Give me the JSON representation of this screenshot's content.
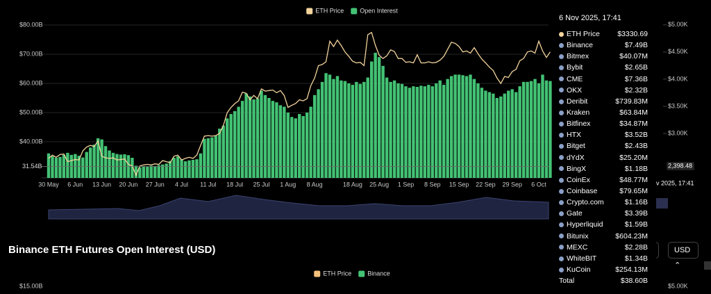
{
  "chart_data": [
    {
      "type": "bar",
      "categories": [
        "30 May",
        null,
        null,
        null,
        null,
        null,
        null,
        "6 Jun",
        null,
        null,
        null,
        null,
        null,
        null,
        "13 Jun",
        null,
        null,
        null,
        null,
        null,
        null,
        "20 Jun",
        null,
        null,
        null,
        null,
        null,
        null,
        "27 Jun",
        null,
        null,
        null,
        null,
        null,
        null,
        "4 Jul",
        null,
        null,
        null,
        null,
        null,
        null,
        "11 Jul",
        null,
        null,
        null,
        null,
        null,
        null,
        "18 Jul",
        null,
        null,
        null,
        null,
        null,
        null,
        "25 Jul",
        null,
        null,
        null,
        null,
        null,
        null,
        "1 Aug",
        null,
        null,
        null,
        null,
        null,
        null,
        "8 Aug",
        null,
        null,
        null,
        null,
        null,
        null,
        null,
        null,
        null,
        "18 Aug",
        null,
        null,
        null,
        null,
        null,
        null,
        "25 Aug",
        null,
        null,
        null,
        null,
        null,
        null,
        "1 Sep",
        null,
        null,
        null,
        null,
        null,
        null,
        "8 Sep",
        null,
        null,
        null,
        null,
        null,
        null,
        "15 Sep",
        null,
        null,
        null,
        null,
        null,
        null,
        "22 Sep",
        null,
        null,
        null,
        null,
        null,
        null,
        "29 Sep",
        null,
        null,
        null,
        null,
        null,
        null,
        "6 Oct",
        null,
        null,
        null
      ],
      "series": [
        {
          "name": "ETH Price",
          "color": "#f3d49c",
          "type": "line",
          "axis": "y2",
          "values": [
            2540,
            2600,
            2560,
            2610,
            2620,
            2480,
            2500,
            2520,
            2510,
            2680,
            2750,
            2780,
            2760,
            2860,
            2580,
            2550,
            2540,
            2550,
            2510,
            2520,
            2530,
            2430,
            2400,
            2230,
            2400,
            2420,
            2430,
            2420,
            2440,
            2430,
            2500,
            2480,
            2460,
            2580,
            2600,
            2510,
            2540,
            2560,
            2540,
            2600,
            2780,
            2950,
            2960,
            2950,
            2960,
            3000,
            3150,
            3380,
            3480,
            3550,
            3600,
            3760,
            3740,
            3620,
            3700,
            3640,
            3820,
            3780,
            3790,
            3800,
            3750,
            3790,
            3700,
            3480,
            3520,
            3550,
            3620,
            3600,
            3640,
            3880,
            4020,
            4250,
            4270,
            4320,
            4700,
            4600,
            4720,
            4620,
            4500,
            4420,
            4330,
            4300,
            4310,
            4250,
            4820,
            4860,
            4620,
            4440,
            4380,
            4430,
            4540,
            4510,
            4380,
            4380,
            4310,
            4320,
            4300,
            4450,
            4300,
            4300,
            4320,
            4300,
            4310,
            4350,
            4420,
            4550,
            4680,
            4660,
            4600,
            4500,
            4520,
            4480,
            4580,
            4470,
            4370,
            4300,
            4220,
            4160,
            4020,
            3920,
            4050,
            4030,
            4140,
            4180,
            4340,
            4380,
            4500,
            4520,
            4480,
            4700,
            4520,
            4400,
            4500
          ]
        },
        {
          "name": "Open Interest",
          "color": "#43c274",
          "values": [
            36.0,
            35.0,
            34.5,
            34.8,
            35.5,
            36.2,
            35.5,
            35.8,
            35.2,
            34.6,
            36.5,
            38.0,
            39.0,
            41.2,
            40.8,
            38.5,
            37.0,
            36.2,
            35.8,
            35.6,
            35.7,
            35.4,
            34.5,
            31.8,
            31.2,
            31.5,
            31.4,
            31.8,
            31.6,
            32.0,
            32.2,
            32.5,
            33.4,
            34.5,
            35.0,
            34.0,
            33.3,
            33.6,
            33.8,
            34.0,
            36.0,
            41.0,
            41.2,
            41.5,
            42.0,
            44.5,
            45.5,
            48.0,
            49.5,
            50.5,
            52.0,
            54.0,
            56.5,
            55.5,
            54.5,
            54.8,
            57.5,
            56.0,
            55.0,
            54.0,
            53.5,
            52.5,
            52.0,
            50.0,
            48.5,
            48.0,
            49.5,
            48.8,
            50.0,
            52.0,
            56.0,
            58.0,
            60.5,
            63.5,
            63.0,
            61.5,
            62.5,
            61.0,
            60.8,
            60.0,
            59.5,
            60.5,
            59.8,
            60.5,
            62.0,
            67.5,
            70.5,
            69.0,
            66.0,
            62.0,
            60.5,
            61.0,
            60.0,
            59.8,
            59.0,
            58.5,
            59.0,
            58.8,
            59.2,
            59.0,
            59.5,
            59.0,
            60.0,
            61.0,
            59.5,
            61.5,
            62.5,
            63.0,
            63.0,
            62.8,
            62.5,
            63.0,
            61.5,
            60.0,
            58.5,
            57.5,
            57.0,
            56.5,
            55.0,
            55.5,
            56.5,
            57.5,
            58.0,
            57.0,
            59.0,
            60.5,
            60.5,
            60.8,
            61.5,
            60.0,
            63.0,
            61.0,
            60.8
          ]
        }
      ],
      "ylim": [
        27.6,
        81.9
      ],
      "yticks": [
        {
          "value": 40,
          "label": "$40.00B"
        },
        {
          "value": 50,
          "label": "$50.00B"
        },
        {
          "value": 60,
          "label": "$60.00B"
        },
        {
          "value": 70,
          "label": "$70.00B"
        },
        {
          "value": 80,
          "label": "$80.00B"
        }
      ],
      "y2lim": [
        2180,
        5100
      ],
      "y2ticks": [
        {
          "value": 3000,
          "label": "$3.00K"
        },
        {
          "value": 3500,
          "label": "$3.50K"
        },
        {
          "value": 4000,
          "label": "$4.00K"
        },
        {
          "value": 4500,
          "label": "$4.50K"
        },
        {
          "value": 5000,
          "label": "$5.00K"
        }
      ],
      "markers": [
        {
          "axis": "y",
          "value": 31.54,
          "label": "31.54B"
        },
        {
          "axis": "y2",
          "value": 2398.48,
          "label": "2,398.48"
        }
      ],
      "grid": true
    },
    {
      "type": "bar",
      "title": "Binance ETH Futures Open Interest (USD)",
      "series": [
        {
          "name": "ETH Price",
          "color": "#f3c07a"
        },
        {
          "name": "Binance",
          "color": "#43c274"
        }
      ],
      "yticks": [
        {
          "value": 15,
          "label": "$15.00B"
        }
      ],
      "y2ticks": [
        {
          "value": 5000,
          "label": "$5.00K"
        }
      ]
    }
  ],
  "tooltip": {
    "date": "6 Nov 2025, 17:41",
    "rows": [
      {
        "name": "ETH Price",
        "value": "$3330.69"
      },
      {
        "name": "Binance",
        "value": "$7.49B"
      },
      {
        "name": "Bitmex",
        "value": "$40.07M"
      },
      {
        "name": "Bybit",
        "value": "$2.65B"
      },
      {
        "name": "CME",
        "value": "$7.36B"
      },
      {
        "name": "OKX",
        "value": "$2.32B"
      },
      {
        "name": "Deribit",
        "value": "$739.83M"
      },
      {
        "name": "Kraken",
        "value": "$63.84M"
      },
      {
        "name": "Bitfinex",
        "value": "$34.87M"
      },
      {
        "name": "HTX",
        "value": "$3.52B"
      },
      {
        "name": "Bitget",
        "value": "$2.43B"
      },
      {
        "name": "dYdX",
        "value": "$25.20M"
      },
      {
        "name": "BingX",
        "value": "$1.18B"
      },
      {
        "name": "CoinEx",
        "value": "$48.77M"
      },
      {
        "name": "Coinbase",
        "value": "$79.65M"
      },
      {
        "name": "Crypto.com",
        "value": "$1.16B"
      },
      {
        "name": "Gate",
        "value": "$3.39B"
      },
      {
        "name": "Hyperliquid",
        "value": "$1.59B"
      },
      {
        "name": "Bitunix",
        "value": "$604.23M"
      },
      {
        "name": "MEXC",
        "value": "$2.28B"
      },
      {
        "name": "WhiteBIT",
        "value": "$1.34B"
      },
      {
        "name": "KuCoin",
        "value": "$254.13M"
      },
      {
        "name": "Total",
        "value": "$38.60B"
      }
    ]
  },
  "crosshair_label": "v 2025, 17:41",
  "currency": "USD"
}
